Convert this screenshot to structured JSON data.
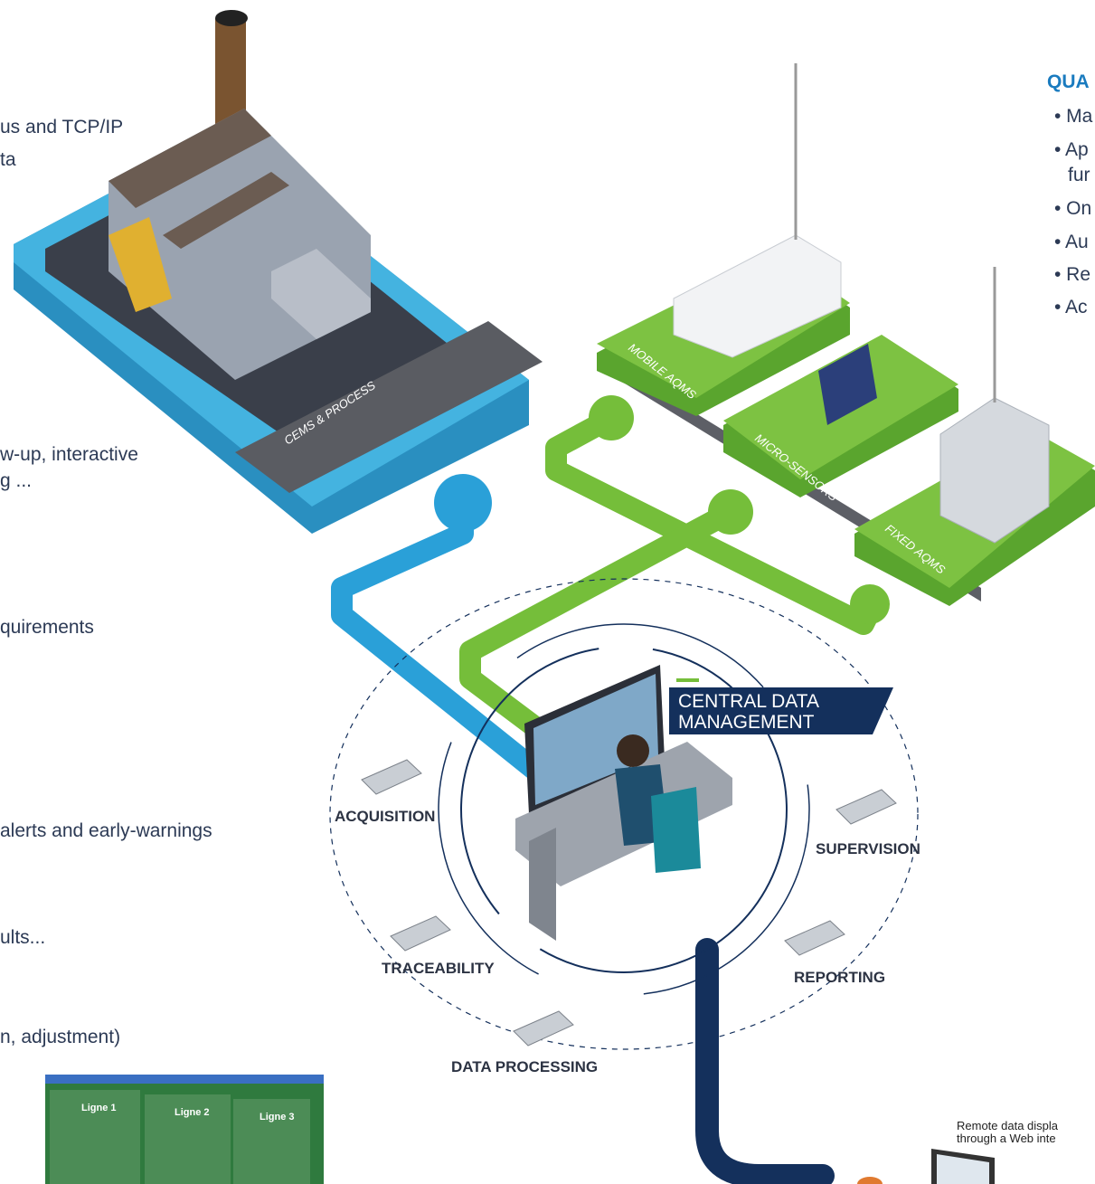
{
  "left_text": [
    "us and TCP/IP",
    "ta",
    "w-up, interactive",
    "g ...",
    "quirements",
    "alerts and early-warnings",
    "ults...",
    "n, adjustment)"
  ],
  "quality_panel": {
    "title": "QUA",
    "items": [
      "• Ma",
      "• Ap",
      "fur",
      "• On",
      "• Au",
      "• Re",
      "• Ac"
    ]
  },
  "platforms": {
    "cems": "CEMS & PROCESS",
    "mobile": "MOBILE AQMS",
    "micro": "MICRO-SENSORS",
    "fixed": "FIXED AQMS"
  },
  "central": {
    "line1": "CENTRAL DATA",
    "line2": "MANAGEMENT"
  },
  "cycle": [
    "ACQUISITION",
    "SUPERVISION",
    "TRACEABILITY",
    "REPORTING",
    "DATA PROCESSING"
  ],
  "remote": [
    "Remote data displa",
    "through a Web inte"
  ],
  "screenshot": {
    "columns": [
      "Ligne 1",
      "Ligne 2",
      "Ligne 3"
    ]
  }
}
